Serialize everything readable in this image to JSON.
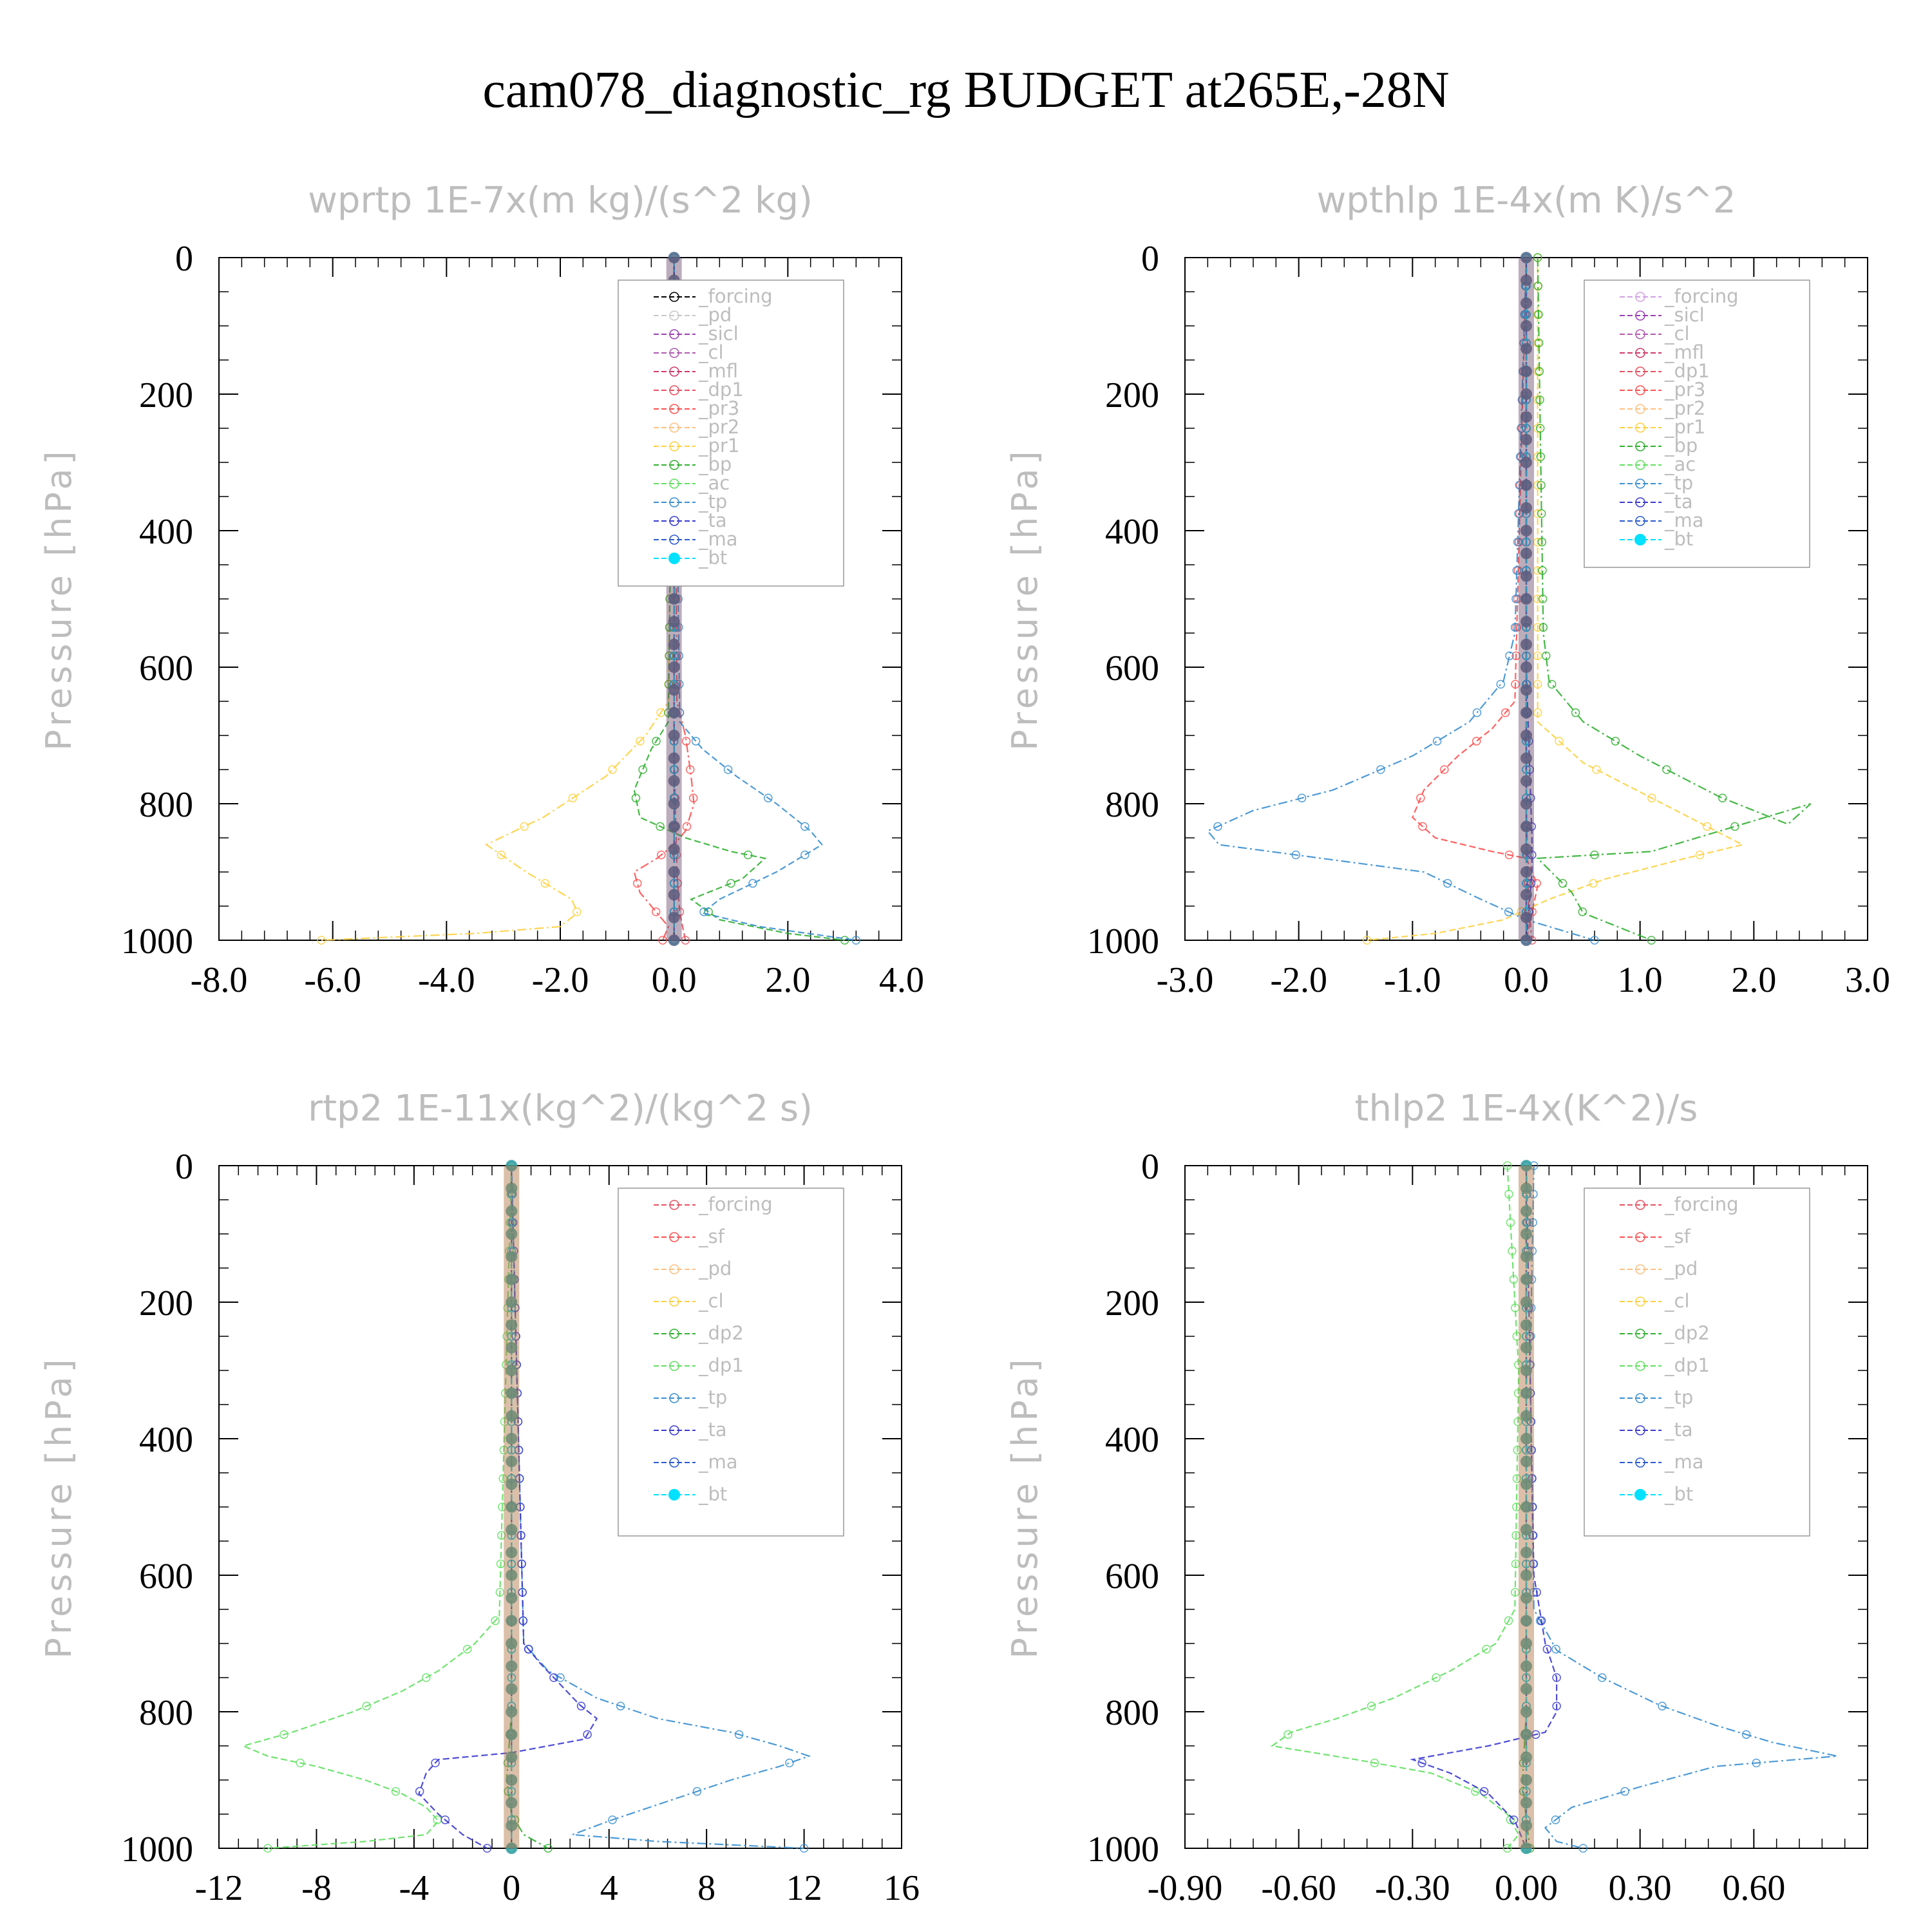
{
  "title": "cam078_diagnostic_rg  BUDGET at265E,-28N",
  "chart_data": [
    {
      "type": "line",
      "title": "wprtp  1E-7x(m kg)/(s^2 kg)",
      "ylabel": "Pressure [hPa]",
      "xlabel": "",
      "xlim": [
        -8.0,
        4.0
      ],
      "ylim": [
        0,
        1000
      ],
      "y_inverted": true,
      "xticks": [
        "-8.0",
        "-6.0",
        "-4.0",
        "-2.0",
        "0.0",
        "2.0",
        "4.0"
      ],
      "yticks": [
        "0",
        "200",
        "400",
        "600",
        "800",
        "1000"
      ],
      "legend_position": "upper-right",
      "series": [
        {
          "name": "_forcing",
          "color": "#000000",
          "x": [
            0,
            0
          ],
          "y": [
            0,
            1000
          ]
        },
        {
          "name": "_pd",
          "color": "#c8c8c8",
          "x": [
            0,
            0
          ],
          "y": [
            0,
            1000
          ]
        },
        {
          "name": "_sicl",
          "color": "#9a3fb5",
          "x": [
            0,
            0
          ],
          "y": [
            0,
            1000
          ]
        },
        {
          "name": "_cl",
          "color": "#b05ab0",
          "x": [
            0,
            0
          ],
          "y": [
            0,
            1000
          ]
        },
        {
          "name": "_mfl",
          "color": "#d03a6a",
          "x": [
            0,
            0
          ],
          "y": [
            0,
            1000
          ]
        },
        {
          "name": "_dp1",
          "color": "#e85060",
          "x": [
            0,
            0,
            0.02,
            0.05,
            0.1,
            0.2
          ],
          "y": [
            0,
            700,
            800,
            900,
            960,
            1000
          ]
        },
        {
          "name": "_pr3",
          "color": "#ff5050",
          "x": [
            0,
            0.05,
            0.2,
            0.3,
            0.35,
            0.2,
            0,
            -0.3,
            -0.7,
            -0.6,
            -0.3,
            -0.1,
            -0.2
          ],
          "y": [
            0,
            650,
            700,
            760,
            800,
            840,
            860,
            880,
            900,
            930,
            960,
            980,
            1000
          ]
        },
        {
          "name": "_pr2",
          "color": "#ffc080",
          "x": [
            0,
            0,
            0,
            0,
            0
          ],
          "y": [
            0,
            500,
            800,
            950,
            1000
          ]
        },
        {
          "name": "_pr1",
          "color": "#ffd040",
          "x": [
            0,
            -0.1,
            -0.5,
            -1.2,
            -2.3,
            -3.3,
            -2.6,
            -1.8,
            -1.7,
            -2.0,
            -3.5,
            -6.2
          ],
          "y": [
            0,
            650,
            700,
            760,
            820,
            860,
            900,
            940,
            960,
            980,
            990,
            1000
          ]
        },
        {
          "name": "_bp",
          "color": "#30b030",
          "x": [
            0,
            -0.1,
            -0.4,
            -0.7,
            -0.6,
            0.2,
            1.0,
            1.6,
            1.2,
            0.3,
            0.8,
            2.0,
            3.0
          ],
          "y": [
            0,
            680,
            720,
            780,
            820,
            850,
            870,
            880,
            910,
            940,
            970,
            990,
            1000
          ]
        },
        {
          "name": "_ac",
          "color": "#60e060",
          "x": [
            0,
            0,
            0,
            0,
            0
          ],
          "y": [
            0,
            500,
            800,
            950,
            1000
          ]
        },
        {
          "name": "_tp",
          "color": "#3a8fd0",
          "x": [
            0,
            0.1,
            0.5,
            1.1,
            1.8,
            2.4,
            2.6,
            2.2,
            1.8,
            1.3,
            0.8,
            0.5,
            1.5,
            3.2
          ],
          "y": [
            0,
            680,
            720,
            760,
            800,
            840,
            860,
            880,
            900,
            920,
            940,
            960,
            980,
            1000
          ]
        },
        {
          "name": "_ta",
          "color": "#3a3ad0",
          "x": [
            0,
            0,
            0,
            0,
            0
          ],
          "y": [
            0,
            500,
            800,
            950,
            1000
          ]
        },
        {
          "name": "_ma",
          "color": "#2a5ad0",
          "x": [
            0,
            0,
            0,
            0,
            0
          ],
          "y": [
            0,
            500,
            800,
            950,
            1000
          ]
        },
        {
          "name": "_bt",
          "color": "#00e0ff",
          "x": [
            0,
            0,
            0,
            0,
            0
          ],
          "y": [
            0,
            500,
            800,
            950,
            1000
          ]
        }
      ]
    },
    {
      "type": "line",
      "title": "wpthlp  1E-4x(m K)/s^2",
      "ylabel": "Pressure [hPa]",
      "xlabel": "",
      "xlim": [
        -3.0,
        3.0
      ],
      "ylim": [
        0,
        1000
      ],
      "y_inverted": true,
      "xticks": [
        "-3.0",
        "-2.0",
        "-1.0",
        "0.0",
        "1.0",
        "2.0",
        "3.0"
      ],
      "yticks": [
        "0",
        "200",
        "400",
        "600",
        "800",
        "1000"
      ],
      "legend_position": "upper-right",
      "series": [
        {
          "name": "_forcing",
          "color": "#d0a0e0",
          "x": [
            0,
            0
          ],
          "y": [
            0,
            1000
          ]
        },
        {
          "name": "_sicl",
          "color": "#9a3fb5",
          "x": [
            0,
            0
          ],
          "y": [
            0,
            1000
          ]
        },
        {
          "name": "_cl",
          "color": "#b05ab0",
          "x": [
            0,
            0
          ],
          "y": [
            0,
            1000
          ]
        },
        {
          "name": "_mfl",
          "color": "#d03a6a",
          "x": [
            0,
            0
          ],
          "y": [
            0,
            1000
          ]
        },
        {
          "name": "_dp1",
          "color": "#e85060",
          "x": [
            0,
            0,
            0,
            0.02,
            0.05
          ],
          "y": [
            0,
            600,
            800,
            950,
            1000
          ]
        },
        {
          "name": "_pr3",
          "color": "#ff5050",
          "x": [
            0,
            -0.1,
            -0.3,
            -0.6,
            -0.9,
            -1.0,
            -0.8,
            -0.3,
            0,
            0.1,
            0
          ],
          "y": [
            0,
            650,
            690,
            730,
            780,
            820,
            850,
            870,
            880,
            920,
            1000
          ]
        },
        {
          "name": "_pr2",
          "color": "#ffc080",
          "x": [
            0,
            0,
            0,
            0
          ],
          "y": [
            0,
            600,
            900,
            1000
          ]
        },
        {
          "name": "_pr1",
          "color": "#ffd040",
          "x": [
            0.1,
            0.1,
            0.1,
            0.5,
            1.2,
            1.9,
            1.4,
            0.7,
            0.2,
            -0.2,
            -0.8,
            -1.4
          ],
          "y": [
            0,
            600,
            680,
            740,
            800,
            860,
            880,
            910,
            940,
            970,
            990,
            1000
          ]
        },
        {
          "name": "_bp",
          "color": "#30b030",
          "x": [
            0.1,
            0.15,
            0.2,
            0.5,
            1.0,
            1.7,
            2.3,
            2.5,
            1.1,
            0.1,
            0.4,
            0.5,
            1.1
          ],
          "y": [
            0,
            550,
            620,
            680,
            730,
            790,
            830,
            800,
            870,
            880,
            930,
            960,
            1000
          ]
        },
        {
          "name": "_ac",
          "color": "#60e060",
          "x": [
            0,
            0,
            0,
            0
          ],
          "y": [
            0,
            600,
            900,
            1000
          ]
        },
        {
          "name": "_tp",
          "color": "#3a8fd0",
          "x": [
            0,
            -0.1,
            -0.2,
            -0.5,
            -1.0,
            -1.7,
            -2.4,
            -2.8,
            -2.7,
            -1.8,
            -0.9,
            -0.4,
            0,
            0.4,
            0.6
          ],
          "y": [
            0,
            550,
            620,
            680,
            730,
            780,
            810,
            840,
            860,
            880,
            900,
            940,
            970,
            990,
            1000
          ]
        },
        {
          "name": "_ta",
          "color": "#3a3ad0",
          "x": [
            0,
            0,
            0.05,
            0.05,
            0
          ],
          "y": [
            0,
            600,
            850,
            900,
            1000
          ]
        },
        {
          "name": "_ma",
          "color": "#2a5ad0",
          "x": [
            0,
            0,
            0,
            0
          ],
          "y": [
            0,
            600,
            900,
            1000
          ]
        },
        {
          "name": "_bt",
          "color": "#00e0ff",
          "x": [
            0,
            0,
            0,
            0
          ],
          "y": [
            0,
            600,
            900,
            1000
          ]
        }
      ]
    },
    {
      "type": "line",
      "title": "rtp2  1E-11x(kg^2)/(kg^2 s)",
      "ylabel": "Pressure [hPa]",
      "xlabel": "",
      "xlim": [
        -12,
        16
      ],
      "ylim": [
        0,
        1000
      ],
      "y_inverted": true,
      "xticks": [
        "-12",
        "-8",
        "-4",
        "0",
        "4",
        "8",
        "12",
        "16"
      ],
      "yticks": [
        "0",
        "200",
        "400",
        "600",
        "800",
        "1000"
      ],
      "legend_position": "upper-right",
      "series": [
        {
          "name": "_forcing",
          "color": "#e85060",
          "x": [
            0,
            0
          ],
          "y": [
            0,
            1000
          ]
        },
        {
          "name": "_sf",
          "color": "#ff5050",
          "x": [
            0,
            0
          ],
          "y": [
            0,
            1000
          ]
        },
        {
          "name": "_pd",
          "color": "#ffc080",
          "x": [
            0,
            0
          ],
          "y": [
            0,
            1000
          ]
        },
        {
          "name": "_cl",
          "color": "#ffd040",
          "x": [
            0,
            0
          ],
          "y": [
            0,
            1000
          ]
        },
        {
          "name": "_dp2",
          "color": "#30b030",
          "x": [
            0,
            0,
            -0.2,
            0,
            0.5,
            1.5
          ],
          "y": [
            0,
            800,
            900,
            950,
            980,
            1000
          ]
        },
        {
          "name": "_dp1",
          "color": "#60e060",
          "x": [
            0,
            -0.5,
            -1.5,
            -3,
            -4.5,
            -6.5,
            -9,
            -11,
            -10,
            -8,
            -6,
            -4.5,
            -3.5,
            -3,
            -3.5,
            -6,
            -10
          ],
          "y": [
            0,
            660,
            700,
            740,
            770,
            800,
            830,
            850,
            865,
            880,
            900,
            920,
            940,
            960,
            980,
            990,
            1000
          ]
        },
        {
          "name": "_tp",
          "color": "#3a8fd0",
          "x": [
            0,
            0.5,
            1.5,
            3.5,
            6,
            9,
            11,
            12.2,
            11,
            9,
            6.5,
            4,
            2.5,
            6,
            12
          ],
          "y": [
            0,
            700,
            740,
            780,
            810,
            830,
            850,
            865,
            880,
            900,
            930,
            960,
            980,
            990,
            1000
          ]
        },
        {
          "name": "_ta",
          "color": "#3a3ad0",
          "x": [
            0,
            0.5,
            1.2,
            2,
            2.8,
            3.5,
            3,
            0,
            -3,
            -3.5,
            -3.8,
            -3,
            -2,
            -1
          ],
          "y": [
            0,
            700,
            730,
            760,
            790,
            810,
            840,
            860,
            870,
            890,
            920,
            950,
            980,
            1000
          ]
        },
        {
          "name": "_ma",
          "color": "#2a5ad0",
          "x": [
            0,
            0,
            0,
            0
          ],
          "y": [
            0,
            600,
            900,
            1000
          ]
        },
        {
          "name": "_bt",
          "color": "#00e0ff",
          "x": [
            0,
            0,
            0,
            0
          ],
          "y": [
            0,
            600,
            900,
            1000
          ]
        }
      ]
    },
    {
      "type": "line",
      "title": "thlp2  1E-4x(K^2)/s",
      "ylabel": "Pressure [hPa]",
      "xlabel": "",
      "xlim": [
        -0.9,
        0.9
      ],
      "ylim": [
        0,
        1000
      ],
      "y_inverted": true,
      "xticks": [
        "-0.90",
        "-0.60",
        "-0.30",
        "0.00",
        "0.30",
        "0.60"
      ],
      "yticks": [
        "0",
        "200",
        "400",
        "600",
        "800",
        "1000"
      ],
      "legend_position": "upper-right",
      "series": [
        {
          "name": "_forcing",
          "color": "#e85060",
          "x": [
            0,
            0
          ],
          "y": [
            0,
            1000
          ]
        },
        {
          "name": "_sf",
          "color": "#ff5050",
          "x": [
            0,
            0
          ],
          "y": [
            0,
            1000
          ]
        },
        {
          "name": "_pd",
          "color": "#ffc080",
          "x": [
            0,
            0
          ],
          "y": [
            0,
            1000
          ]
        },
        {
          "name": "_cl",
          "color": "#ffd040",
          "x": [
            0,
            0
          ],
          "y": [
            0,
            1000
          ]
        },
        {
          "name": "_dp2",
          "color": "#30b030",
          "x": [
            0,
            0,
            -0.01,
            0,
            0.01
          ],
          "y": [
            0,
            800,
            900,
            960,
            1000
          ]
        },
        {
          "name": "_dp1",
          "color": "#60e060",
          "x": [
            -0.05,
            -0.02,
            -0.03,
            -0.08,
            -0.2,
            -0.35,
            -0.5,
            -0.62,
            -0.67,
            -0.45,
            -0.25,
            -0.12,
            -0.05,
            -0.02,
            -0.05
          ],
          "y": [
            0,
            300,
            650,
            700,
            740,
            780,
            810,
            830,
            850,
            870,
            890,
            920,
            950,
            980,
            1000
          ]
        },
        {
          "name": "_tp",
          "color": "#3a8fd0",
          "x": [
            0.02,
            0.01,
            0.02,
            0.08,
            0.2,
            0.35,
            0.5,
            0.65,
            0.82,
            0.5,
            0.3,
            0.12,
            0.05,
            0.08,
            0.15
          ],
          "y": [
            0,
            300,
            650,
            710,
            750,
            790,
            820,
            845,
            865,
            880,
            910,
            940,
            970,
            990,
            1000
          ]
        },
        {
          "name": "_ta",
          "color": "#3a3ad0",
          "x": [
            0,
            0.02,
            0.05,
            0.08,
            0.08,
            0.05,
            -0.1,
            -0.3,
            -0.2,
            -0.1,
            -0.03,
            0
          ],
          "y": [
            0,
            600,
            700,
            750,
            800,
            830,
            850,
            870,
            890,
            920,
            960,
            1000
          ]
        },
        {
          "name": "_ma",
          "color": "#2a5ad0",
          "x": [
            0,
            0,
            0,
            0
          ],
          "y": [
            0,
            600,
            900,
            1000
          ]
        },
        {
          "name": "_bt",
          "color": "#00e0ff",
          "x": [
            0,
            0,
            0,
            0
          ],
          "y": [
            0,
            600,
            900,
            1000
          ]
        }
      ]
    }
  ]
}
